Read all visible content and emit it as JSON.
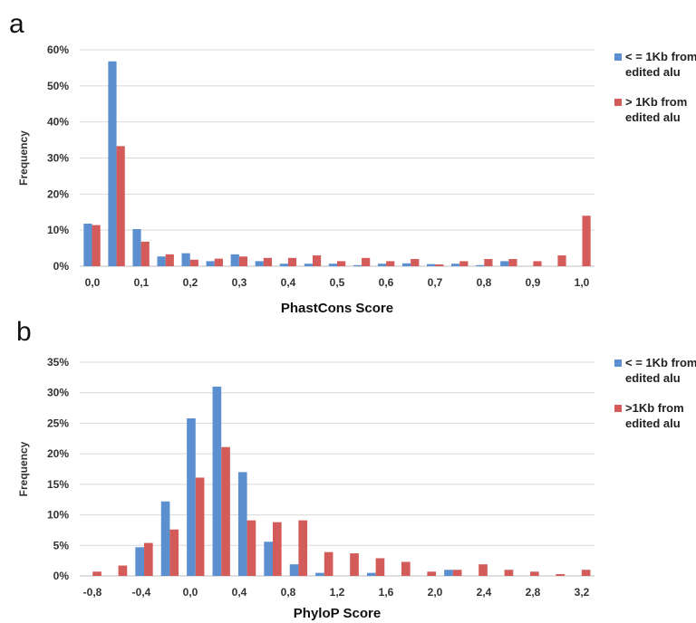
{
  "colors": {
    "near": "#5b8fcf",
    "far": "#d35c5a"
  },
  "chart_data": [
    {
      "type": "bar",
      "panel_label": "a",
      "xlabel": "PhastCons Score",
      "ylabel": "Frequency",
      "ylim": [
        0,
        60
      ],
      "yticks": [
        "0%",
        "10%",
        "20%",
        "30%",
        "40%",
        "50%",
        "60%"
      ],
      "xtick_labels": [
        "0,0",
        "0,1",
        "0,2",
        "0,3",
        "0,4",
        "0,5",
        "0,6",
        "0,7",
        "0,8",
        "0,9",
        "1,0"
      ],
      "grid": true,
      "legend_position": "right",
      "series": [
        {
          "name": "< = 1Kb from edited alu",
          "legend_lines": [
            "< = 1Kb from",
            "edited alu"
          ],
          "color": "#5b8fcf",
          "values": [
            11.8,
            56.8,
            10.3,
            2.7,
            3.6,
            1.4,
            3.3,
            1.4,
            0.7,
            0.7,
            0.7,
            0.3,
            0.7,
            0.8,
            0.6,
            0.7,
            0.3,
            1.4
          ]
        },
        {
          "name": "> 1Kb from edited alu",
          "legend_lines": [
            "> 1Kb from",
            "edited alu"
          ],
          "color": "#d35c5a",
          "values": [
            11.4,
            33.3,
            6.8,
            3.3,
            1.8,
            2.1,
            2.7,
            2.3,
            2.3,
            3.0,
            1.4,
            2.3,
            1.4,
            2.0,
            0.5,
            1.4,
            2.0,
            2.0,
            1.4,
            3.0,
            14.0
          ]
        }
      ]
    },
    {
      "type": "bar",
      "panel_label": "b",
      "xlabel": "PhyloP Score",
      "ylabel": "Frequency",
      "ylim": [
        0,
        35
      ],
      "yticks": [
        "0%",
        "5%",
        "10%",
        "15%",
        "20%",
        "25%",
        "30%",
        "35%"
      ],
      "xtick_labels": [
        "-0,8",
        "-0,4",
        "0,0",
        "0,4",
        "0,8",
        "1,2",
        "1,6",
        "2,0",
        "2,4",
        "2,8",
        "3,2"
      ],
      "grid": true,
      "legend_position": "right",
      "series": [
        {
          "name": "< = 1Kb from edited alu",
          "legend_lines": [
            "< = 1Kb from",
            "edited alu"
          ],
          "color": "#5b8fcf",
          "values": [
            0,
            0,
            4.7,
            12.2,
            25.8,
            31.0,
            17.0,
            5.6,
            1.9,
            0.5,
            0,
            0.5,
            0,
            0,
            1.0,
            0,
            0,
            0,
            0,
            0
          ]
        },
        {
          "name": ">1Kb from edited alu",
          "legend_lines": [
            ">1Kb from",
            "edited alu"
          ],
          "color": "#d35c5a",
          "values": [
            0.7,
            1.7,
            5.4,
            7.6,
            16.1,
            21.1,
            9.1,
            8.8,
            9.1,
            3.9,
            3.7,
            2.9,
            2.3,
            0.7,
            1.0,
            1.9,
            1.0,
            0.7,
            0.3,
            1.0
          ]
        }
      ]
    }
  ]
}
